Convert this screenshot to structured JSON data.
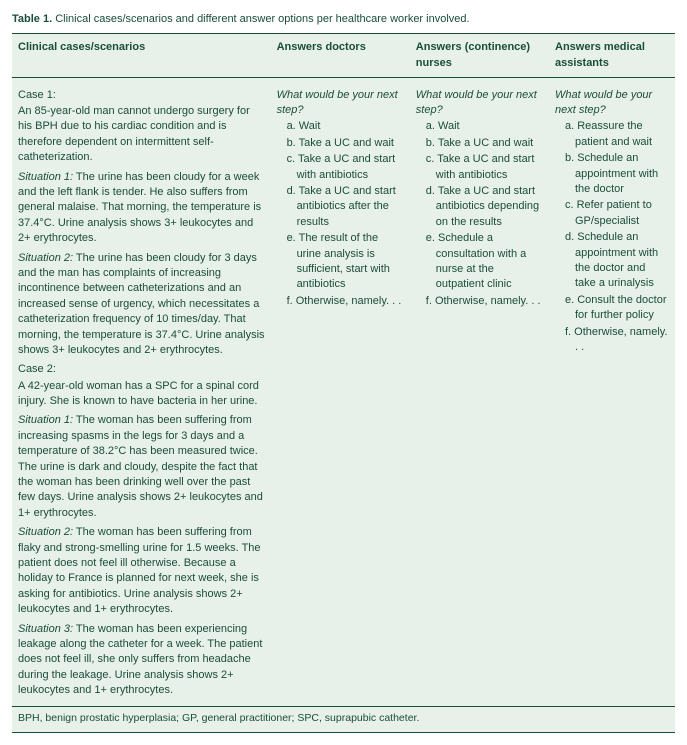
{
  "title_bold": "Table 1.",
  "title_rest": "Clinical cases/scenarios and different answer options per healthcare worker involved.",
  "headers": {
    "scenarios": "Clinical cases/scenarios",
    "doctors": "Answers doctors",
    "nurses": "Answers (continence) nurses",
    "ma": "Answers medical assistants"
  },
  "case1": {
    "label": "Case 1:",
    "body": "An 85-year-old man cannot undergo surgery for his BPH due to his cardiac condition and is therefore dependent on intermittent self-catheterization.",
    "s1_label": "Situation 1:",
    "s1_text": " The urine has been cloudy for a week and the left flank is tender. He also suffers from general malaise. That morning, the temperature is 37.4°C. Urine analysis shows 3+ leukocytes and 2+ erythrocytes.",
    "s2_label": "Situation 2:",
    "s2_text": " The urine has been cloudy for 3 days and the man has complaints of increasing incontinence between catheterizations and an increased sense of urgency, which necessitates a catheterization frequency of 10 times/day. That morning, the temperature is 37.4°C. Urine analysis shows 3+ leukocytes and 2+ erythrocytes."
  },
  "case2": {
    "label": "Case 2:",
    "body": "A 42-year-old woman has a SPC for a spinal cord injury. She is known to have bacteria in her urine.",
    "s1_label": "Situation 1:",
    "s1_text": " The woman has been suffering from increasing spasms in the legs for 3 days and a temperature of 38.2°C has been measured twice. The urine is dark and cloudy, despite the fact that the woman has been drinking well over the past few days. Urine analysis shows 2+ leukocytes and 1+ erythrocytes.",
    "s2_label": "Situation 2:",
    "s2_text": " The woman has been suffering from flaky and strong-smelling urine for 1.5 weeks. The patient does not feel ill otherwise. Because a holiday to France is planned for next week, she is asking for antibiotics. Urine analysis shows 2+ leukocytes and 1+ erythrocytes.",
    "s3_label": "Situation 3:",
    "s3_text": " The woman has been experiencing leakage along the catheter for a week. The patient does not feel ill, she only suffers from headache during the leakage. Urine analysis shows 2+ leukocytes and 1+ erythrocytes."
  },
  "prompt": "What would be your next step?",
  "doctors": {
    "a": "a. Wait",
    "b": "b. Take a UC and wait",
    "c": "c. Take a UC and start with antibiotics",
    "d": "d. Take a UC and start antibiotics after the results",
    "e": "e. The result of the urine analysis is sufficient, start with antibiotics",
    "f": "f. Otherwise, namely. . ."
  },
  "nurses": {
    "a": "a. Wait",
    "b": "b. Take a UC and wait",
    "c": "c. Take a UC and start with antibiotics",
    "d": "d. Take a UC and start antibiotics depending on the results",
    "e": "e. Schedule a consultation with a nurse at the outpatient clinic",
    "f": "f. Otherwise, namely. . ."
  },
  "ma": {
    "a": "a. Reassure the patient and wait",
    "b": "b. Schedule an appointment with the doctor",
    "c": "c. Refer patient to GP/specialist",
    "d": "d. Schedule an appointment with the doctor and take a urinalysis",
    "e": "e. Consult the doctor for further policy",
    "f": "f. Otherwise, namely. . ."
  },
  "footnote": "BPH, benign prostatic hyperplasia; GP, general practitioner; SPC, suprapubic catheter."
}
